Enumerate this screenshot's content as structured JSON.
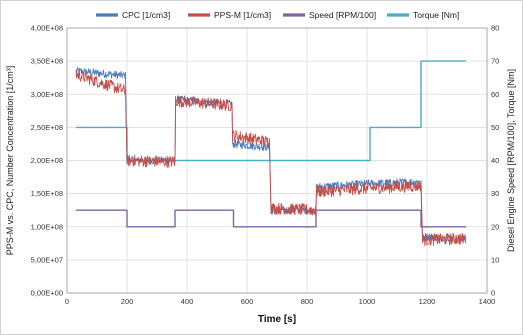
{
  "chart_data": {
    "type": "line",
    "xlabel": "Time [s]",
    "ylabel_left": "PPS-M vs. CPC, Number Concentration [1/cm³]",
    "ylabel_right": "Diesel Engine Speed [RPM/100], Torque [Nm]",
    "xlim": [
      0,
      1400
    ],
    "ylim_left": [
      0,
      400000000
    ],
    "ylim_right": [
      0,
      80
    ],
    "x_ticks": [
      0,
      200,
      400,
      600,
      800,
      1000,
      1200,
      1400
    ],
    "x_tick_labels": [
      "0",
      "200",
      "400",
      "600",
      "800",
      "1000",
      "1200",
      "1400"
    ],
    "y_left_ticks": [
      0,
      50000000,
      100000000,
      150000000,
      200000000,
      250000000,
      300000000,
      350000000,
      400000000
    ],
    "y_left_tick_labels": [
      "0,00E+00",
      "5,00E+07",
      "1,00E+08",
      "1,50E+08",
      "2,00E+08",
      "2,50E+08",
      "3,00E+08",
      "3,50E+08",
      "4,00E+08"
    ],
    "y_right_ticks": [
      0,
      10,
      20,
      30,
      40,
      50,
      60,
      70,
      80
    ],
    "y_right_tick_labels": [
      "0",
      "10",
      "20",
      "30",
      "40",
      "50",
      "60",
      "70",
      "80"
    ],
    "grid": true,
    "legend_position": "top",
    "series": [
      {
        "name": "CPC [1/cm3]",
        "axis": "left",
        "color": "#4a7ebb",
        "noisy": true,
        "noise": 6000000,
        "points": [
          [
            30,
            335000000
          ],
          [
            195,
            328000000
          ],
          [
            200,
            200000000
          ],
          [
            360,
            200000000
          ],
          [
            362,
            292000000
          ],
          [
            550,
            285000000
          ],
          [
            552,
            225000000
          ],
          [
            675,
            220000000
          ],
          [
            680,
            125000000
          ],
          [
            830,
            125000000
          ],
          [
            832,
            160000000
          ],
          [
            1000,
            165000000
          ],
          [
            1180,
            168000000
          ],
          [
            1185,
            85000000
          ],
          [
            1330,
            82000000
          ]
        ]
      },
      {
        "name": "PPS-M [1/cm3]",
        "axis": "left",
        "color": "#c0504d",
        "noisy": true,
        "noise": 9000000,
        "points": [
          [
            30,
            330000000
          ],
          [
            195,
            305000000
          ],
          [
            200,
            200000000
          ],
          [
            360,
            198000000
          ],
          [
            362,
            290000000
          ],
          [
            550,
            283000000
          ],
          [
            552,
            238000000
          ],
          [
            675,
            228000000
          ],
          [
            680,
            128000000
          ],
          [
            830,
            125000000
          ],
          [
            832,
            153000000
          ],
          [
            1000,
            158000000
          ],
          [
            1180,
            162000000
          ],
          [
            1185,
            80000000
          ],
          [
            1330,
            82000000
          ]
        ]
      },
      {
        "name": "Speed [RPM/100]",
        "axis": "right",
        "color": "#8064a2",
        "noisy": false,
        "points": [
          [
            30,
            25
          ],
          [
            200,
            25
          ],
          [
            200,
            20
          ],
          [
            360,
            20
          ],
          [
            360,
            25
          ],
          [
            555,
            25
          ],
          [
            555,
            20
          ],
          [
            830,
            20
          ],
          [
            830,
            25
          ],
          [
            1180,
            25
          ],
          [
            1180,
            20
          ],
          [
            1330,
            20
          ]
        ]
      },
      {
        "name": "Torque [Nm]",
        "axis": "right",
        "color": "#4bacc6",
        "noisy": false,
        "points": [
          [
            30,
            50
          ],
          [
            200,
            50
          ],
          [
            200,
            40
          ],
          [
            1010,
            40
          ],
          [
            1010,
            50
          ],
          [
            1180,
            50
          ],
          [
            1180,
            70
          ],
          [
            1330,
            70
          ]
        ]
      }
    ]
  }
}
